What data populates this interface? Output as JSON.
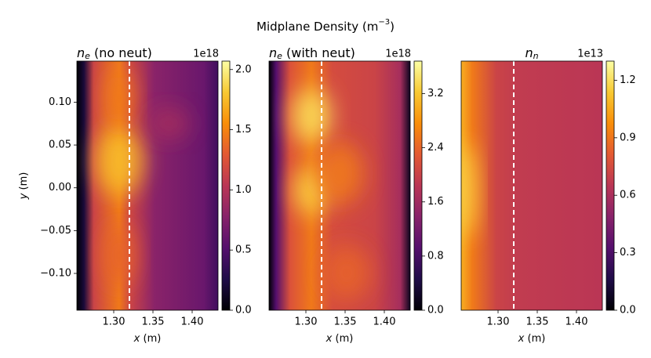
{
  "suptitle": {
    "text": "Midplane Density (m",
    "exponent": "−3",
    "end": ")"
  },
  "chart_data": [
    {
      "type": "heatmap",
      "title": {
        "symbol": "n",
        "subscript": "e",
        "rest": " (no neut)"
      },
      "xlabel": {
        "var": "x",
        "unit": " (m)"
      },
      "ylabel": {
        "var": "y",
        "unit": " (m)"
      },
      "xlim": [
        1.253,
        1.433
      ],
      "xticks": [
        {
          "value": 1.3,
          "label": "1.30"
        },
        {
          "value": 1.35,
          "label": "1.35"
        },
        {
          "value": 1.4,
          "label": "1.40"
        }
      ],
      "ylim": [
        -0.143,
        0.148
      ],
      "yticks": [
        {
          "value": 0.1,
          "label": "0.10"
        },
        {
          "value": 0.05,
          "label": "0.05"
        },
        {
          "value": 0,
          "label": "0.00"
        },
        {
          "value": -0.05,
          "label": "−0.05"
        },
        {
          "value": -0.1,
          "label": "−0.10"
        }
      ],
      "vline": 1.32,
      "vline_color": "#ffffff",
      "colormap": "inferno",
      "clim": [
        0,
        2.07
      ],
      "cticks": [
        {
          "value": 0,
          "label": "0.0"
        },
        {
          "value": 0.5,
          "label": "0.5"
        },
        {
          "value": 1,
          "label": "1.0"
        },
        {
          "value": 1.5,
          "label": "1.5"
        },
        {
          "value": 2,
          "label": "2.0"
        }
      ],
      "cscale": "1e18"
    },
    {
      "type": "heatmap",
      "title": {
        "symbol": "n",
        "subscript": "e",
        "rest": " (with neut)"
      },
      "xlabel": {
        "var": "x",
        "unit": " (m)"
      },
      "xlim": [
        1.253,
        1.433
      ],
      "xticks": [
        {
          "value": 1.3,
          "label": "1.30"
        },
        {
          "value": 1.35,
          "label": "1.35"
        },
        {
          "value": 1.4,
          "label": "1.40"
        }
      ],
      "ylim": [
        -0.143,
        0.148
      ],
      "vline": 1.32,
      "vline_color": "#ffffff",
      "colormap": "inferno",
      "clim": [
        0,
        3.68
      ],
      "cticks": [
        {
          "value": 0,
          "label": "0.0"
        },
        {
          "value": 0.8,
          "label": "0.8"
        },
        {
          "value": 1.6,
          "label": "1.6"
        },
        {
          "value": 2.4,
          "label": "2.4"
        },
        {
          "value": 3.2,
          "label": "3.2"
        }
      ],
      "cscale": "1e18"
    },
    {
      "type": "heatmap",
      "title": {
        "symbol": "n",
        "subscript": "n",
        "rest": ""
      },
      "xlabel": {
        "var": "x",
        "unit": " (m)"
      },
      "xlim": [
        1.253,
        1.433
      ],
      "xticks": [
        {
          "value": 1.3,
          "label": "1.30"
        },
        {
          "value": 1.35,
          "label": "1.35"
        },
        {
          "value": 1.4,
          "label": "1.40"
        }
      ],
      "ylim": [
        -0.143,
        0.148
      ],
      "vline": 1.32,
      "vline_color": "#ffffff",
      "colormap": "inferno",
      "clim": [
        0,
        1.3
      ],
      "cticks": [
        {
          "value": 0,
          "label": "0.0"
        },
        {
          "value": 0.3,
          "label": "0.3"
        },
        {
          "value": 0.6,
          "label": "0.6"
        },
        {
          "value": 0.9,
          "label": "0.9"
        },
        {
          "value": 1.2,
          "label": "1.2"
        }
      ],
      "cscale": "1e13"
    }
  ]
}
